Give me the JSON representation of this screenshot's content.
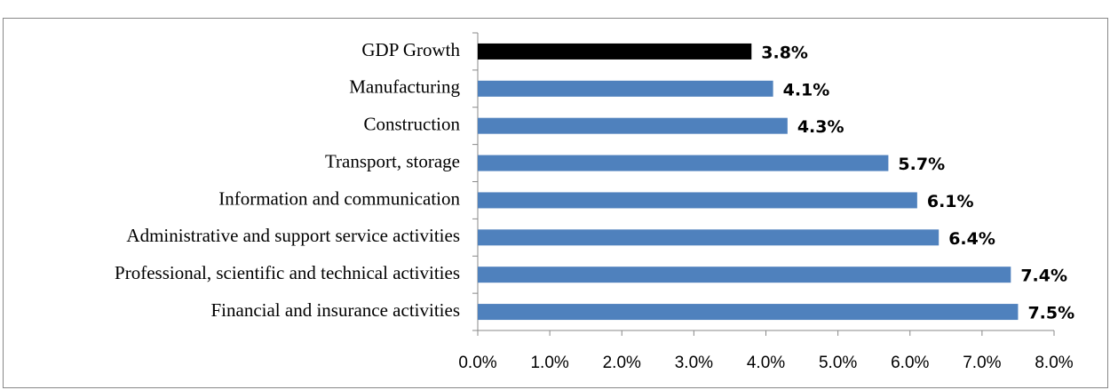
{
  "chart_data": {
    "type": "bar",
    "orientation": "horizontal",
    "categories": [
      "GDP Growth",
      "Manufacturing",
      "Construction",
      "Transport, storage",
      "Information and communication",
      "Administrative and support service activities",
      "Professional, scientific and technical activities",
      "Financial and insurance activities"
    ],
    "values": [
      3.8,
      4.1,
      4.3,
      5.7,
      6.1,
      6.4,
      7.4,
      7.5
    ],
    "value_labels": [
      "3.8%",
      "4.1%",
      "4.3%",
      "5.7%",
      "6.1%",
      "6.4%",
      "7.4%",
      "7.5%"
    ],
    "colors": [
      "#000000",
      "#4f81bd",
      "#4f81bd",
      "#4f81bd",
      "#4f81bd",
      "#4f81bd",
      "#4f81bd",
      "#4f81bd"
    ],
    "xlim": [
      0,
      8
    ],
    "xticks": [
      {
        "value": 0,
        "label": "0.0%"
      },
      {
        "value": 1,
        "label": "1.0%"
      },
      {
        "value": 2,
        "label": "2.0%"
      },
      {
        "value": 3,
        "label": "3.0%"
      },
      {
        "value": 4,
        "label": "4.0%"
      },
      {
        "value": 5,
        "label": "5.0%"
      },
      {
        "value": 6,
        "label": "6.0%"
      },
      {
        "value": 7,
        "label": "7.0%"
      },
      {
        "value": 8,
        "label": "8.0%"
      }
    ],
    "grid": false
  }
}
